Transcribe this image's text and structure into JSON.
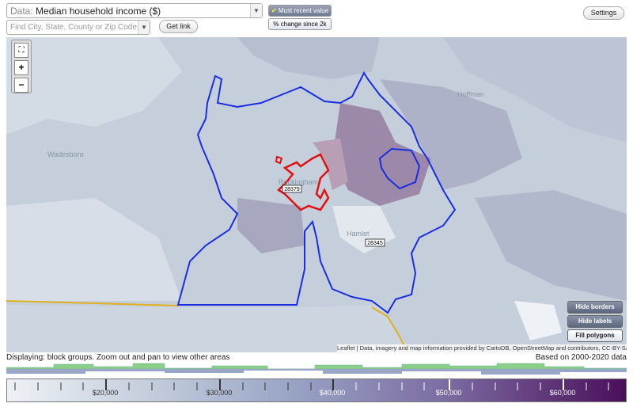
{
  "toolbar": {
    "data_label": "Data:",
    "data_value": "Median household income ($)",
    "search_placeholder": "Find City, State, County or Zip Code",
    "get_link": "Get link",
    "most_recent": "Must recent value",
    "change_since": "% change since 2k",
    "settings": "Settings"
  },
  "map": {
    "places": [
      "Hoffman",
      "Wadesboro",
      "Rockingham",
      "Hamlet"
    ],
    "zips": [
      "28379",
      "28345"
    ],
    "zoom_in": "+",
    "zoom_out": "−",
    "buttons": [
      "Hide borders",
      "Hide labels",
      "Fill polygons"
    ],
    "attribution": "Leaflet | Data, imagery and map information provided by CartoDB, OpenStreetMap and contributors, CC-BY-SA"
  },
  "footer": {
    "displaying": "Displaying: block groups. Zoom out and pan to view other areas",
    "based_on": "Based on 2000-2020 data",
    "scale_labels": [
      "$20,000",
      "$30,000",
      "$40,000",
      "$50,000",
      "$60,000"
    ]
  }
}
